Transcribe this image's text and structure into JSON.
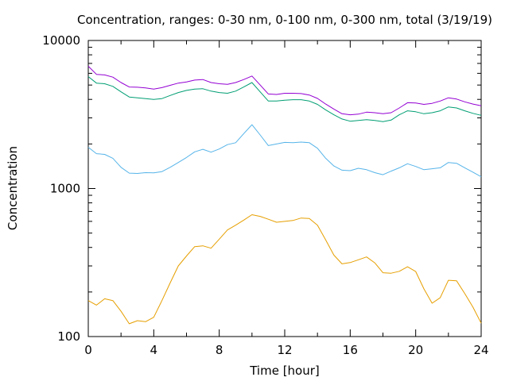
{
  "chart_data": {
    "type": "line",
    "title": "Concentration, ranges: 0-30 nm, 0-100 nm, 0-300 nm, total (3/19/19)",
    "xlabel": "Time [hour]",
    "ylabel": "Concentration",
    "xlim": [
      0,
      24
    ],
    "ylim": [
      100,
      10000
    ],
    "yscale": "log",
    "x_ticks": [
      "0",
      "4",
      "8",
      "12",
      "16",
      "20",
      "24"
    ],
    "y_ticks": [
      "100",
      "1000",
      "10000"
    ],
    "legend": "none",
    "grid": false,
    "series": [
      {
        "color": "#e69f00",
        "x": [
          0,
          0.5,
          1,
          1.5,
          2,
          2.5,
          3,
          3.5,
          4,
          4.5,
          5,
          5.5,
          6,
          6.5,
          7,
          7.5,
          8,
          8.5,
          9,
          9.5,
          10,
          10.5,
          11,
          11.5,
          12,
          12.5,
          13,
          13.5,
          14,
          14.5,
          15,
          15.5,
          16,
          16.5,
          17,
          17.5,
          18,
          18.5,
          19,
          19.5,
          20,
          20.5,
          21,
          21.5,
          22,
          22.5,
          23,
          23.5,
          24
        ],
        "y": [
          175,
          163,
          180,
          175,
          148,
          122,
          128,
          126,
          135,
          175,
          230,
          300,
          350,
          405,
          410,
          395,
          455,
          525,
          565,
          612,
          665,
          648,
          620,
          592,
          600,
          608,
          632,
          628,
          565,
          450,
          355,
          310,
          316,
          330,
          345,
          315,
          270,
          268,
          276,
          296,
          275,
          210,
          168,
          183,
          240,
          238,
          195,
          158,
          123
        ]
      },
      {
        "color": "#56b4e9",
        "x": [
          0,
          0.5,
          1,
          1.5,
          2,
          2.5,
          3,
          3.5,
          4,
          4.5,
          5,
          5.5,
          6,
          6.5,
          7,
          7.5,
          8,
          8.5,
          9,
          9.5,
          10,
          10.5,
          11,
          11.5,
          12,
          12.5,
          13,
          13.5,
          14,
          14.5,
          15,
          15.5,
          16,
          16.5,
          17,
          17.5,
          18,
          18.5,
          19,
          19.5,
          20,
          20.5,
          21,
          21.5,
          22,
          22.5,
          23,
          23.5,
          24
        ],
        "y": [
          1900,
          1720,
          1700,
          1600,
          1390,
          1270,
          1265,
          1280,
          1275,
          1300,
          1390,
          1500,
          1620,
          1770,
          1840,
          1760,
          1850,
          1980,
          2040,
          2350,
          2700,
          2300,
          1950,
          2000,
          2050,
          2040,
          2060,
          2040,
          1870,
          1600,
          1420,
          1330,
          1320,
          1370,
          1340,
          1280,
          1240,
          1310,
          1380,
          1470,
          1410,
          1340,
          1360,
          1380,
          1500,
          1480,
          1380,
          1290,
          1200
        ]
      },
      {
        "color": "#009e73",
        "x": [
          0,
          0.5,
          1,
          1.5,
          2,
          2.5,
          3,
          3.5,
          4,
          4.5,
          5,
          5.5,
          6,
          6.5,
          7,
          7.5,
          8,
          8.5,
          9,
          9.5,
          10,
          10.5,
          11,
          11.5,
          12,
          12.5,
          13,
          13.5,
          14,
          14.5,
          15,
          15.5,
          16,
          16.5,
          17,
          17.5,
          18,
          18.5,
          19,
          19.5,
          20,
          20.5,
          21,
          21.5,
          22,
          22.5,
          23,
          23.5,
          24
        ],
        "y": [
          5700,
          5150,
          5100,
          4900,
          4500,
          4150,
          4100,
          4050,
          4000,
          4050,
          4250,
          4450,
          4600,
          4700,
          4720,
          4550,
          4450,
          4400,
          4550,
          4850,
          5200,
          4500,
          3900,
          3900,
          3950,
          3980,
          3980,
          3900,
          3700,
          3400,
          3150,
          2950,
          2850,
          2880,
          2920,
          2880,
          2830,
          2900,
          3150,
          3350,
          3300,
          3200,
          3250,
          3350,
          3560,
          3500,
          3350,
          3220,
          3120
        ]
      },
      {
        "color": "#9400d3",
        "x": [
          0,
          0.5,
          1,
          1.5,
          2,
          2.5,
          3,
          3.5,
          4,
          4.5,
          5,
          5.5,
          6,
          6.5,
          7,
          7.5,
          8,
          8.5,
          9,
          9.5,
          10,
          10.5,
          11,
          11.5,
          12,
          12.5,
          13,
          13.5,
          14,
          14.5,
          15,
          15.5,
          16,
          16.5,
          17,
          17.5,
          18,
          18.5,
          19,
          19.5,
          20,
          20.5,
          21,
          21.5,
          22,
          22.5,
          23,
          23.5,
          24
        ],
        "y": [
          6700,
          5900,
          5850,
          5650,
          5200,
          4850,
          4830,
          4780,
          4700,
          4800,
          4980,
          5150,
          5250,
          5400,
          5450,
          5200,
          5100,
          5050,
          5200,
          5450,
          5750,
          5000,
          4350,
          4320,
          4400,
          4400,
          4380,
          4280,
          4060,
          3720,
          3440,
          3200,
          3150,
          3180,
          3280,
          3250,
          3200,
          3250,
          3500,
          3800,
          3780,
          3700,
          3760,
          3900,
          4100,
          4020,
          3850,
          3720,
          3620
        ]
      }
    ]
  }
}
